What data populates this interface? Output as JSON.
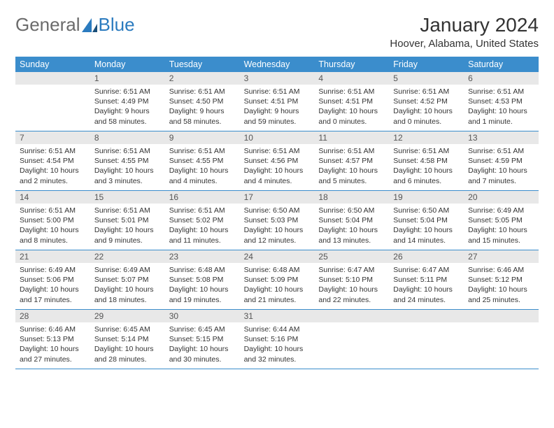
{
  "logo": {
    "general": "General",
    "blue": "Blue"
  },
  "title": "January 2024",
  "location": "Hoover, Alabama, United States",
  "colors": {
    "header_bg": "#3b8dcc",
    "header_text": "#ffffff",
    "daynum_bg": "#e8e8e8",
    "week_border": "#3b8dcc",
    "logo_gray": "#6b6b6b",
    "logo_blue": "#2b7bbf"
  },
  "day_names": [
    "Sunday",
    "Monday",
    "Tuesday",
    "Wednesday",
    "Thursday",
    "Friday",
    "Saturday"
  ],
  "weeks": [
    [
      null,
      {
        "n": "1",
        "sr": "Sunrise: 6:51 AM",
        "ss": "Sunset: 4:49 PM",
        "dl": "Daylight: 9 hours and 58 minutes."
      },
      {
        "n": "2",
        "sr": "Sunrise: 6:51 AM",
        "ss": "Sunset: 4:50 PM",
        "dl": "Daylight: 9 hours and 58 minutes."
      },
      {
        "n": "3",
        "sr": "Sunrise: 6:51 AM",
        "ss": "Sunset: 4:51 PM",
        "dl": "Daylight: 9 hours and 59 minutes."
      },
      {
        "n": "4",
        "sr": "Sunrise: 6:51 AM",
        "ss": "Sunset: 4:51 PM",
        "dl": "Daylight: 10 hours and 0 minutes."
      },
      {
        "n": "5",
        "sr": "Sunrise: 6:51 AM",
        "ss": "Sunset: 4:52 PM",
        "dl": "Daylight: 10 hours and 0 minutes."
      },
      {
        "n": "6",
        "sr": "Sunrise: 6:51 AM",
        "ss": "Sunset: 4:53 PM",
        "dl": "Daylight: 10 hours and 1 minute."
      }
    ],
    [
      {
        "n": "7",
        "sr": "Sunrise: 6:51 AM",
        "ss": "Sunset: 4:54 PM",
        "dl": "Daylight: 10 hours and 2 minutes."
      },
      {
        "n": "8",
        "sr": "Sunrise: 6:51 AM",
        "ss": "Sunset: 4:55 PM",
        "dl": "Daylight: 10 hours and 3 minutes."
      },
      {
        "n": "9",
        "sr": "Sunrise: 6:51 AM",
        "ss": "Sunset: 4:55 PM",
        "dl": "Daylight: 10 hours and 4 minutes."
      },
      {
        "n": "10",
        "sr": "Sunrise: 6:51 AM",
        "ss": "Sunset: 4:56 PM",
        "dl": "Daylight: 10 hours and 4 minutes."
      },
      {
        "n": "11",
        "sr": "Sunrise: 6:51 AM",
        "ss": "Sunset: 4:57 PM",
        "dl": "Daylight: 10 hours and 5 minutes."
      },
      {
        "n": "12",
        "sr": "Sunrise: 6:51 AM",
        "ss": "Sunset: 4:58 PM",
        "dl": "Daylight: 10 hours and 6 minutes."
      },
      {
        "n": "13",
        "sr": "Sunrise: 6:51 AM",
        "ss": "Sunset: 4:59 PM",
        "dl": "Daylight: 10 hours and 7 minutes."
      }
    ],
    [
      {
        "n": "14",
        "sr": "Sunrise: 6:51 AM",
        "ss": "Sunset: 5:00 PM",
        "dl": "Daylight: 10 hours and 8 minutes."
      },
      {
        "n": "15",
        "sr": "Sunrise: 6:51 AM",
        "ss": "Sunset: 5:01 PM",
        "dl": "Daylight: 10 hours and 9 minutes."
      },
      {
        "n": "16",
        "sr": "Sunrise: 6:51 AM",
        "ss": "Sunset: 5:02 PM",
        "dl": "Daylight: 10 hours and 11 minutes."
      },
      {
        "n": "17",
        "sr": "Sunrise: 6:50 AM",
        "ss": "Sunset: 5:03 PM",
        "dl": "Daylight: 10 hours and 12 minutes."
      },
      {
        "n": "18",
        "sr": "Sunrise: 6:50 AM",
        "ss": "Sunset: 5:04 PM",
        "dl": "Daylight: 10 hours and 13 minutes."
      },
      {
        "n": "19",
        "sr": "Sunrise: 6:50 AM",
        "ss": "Sunset: 5:04 PM",
        "dl": "Daylight: 10 hours and 14 minutes."
      },
      {
        "n": "20",
        "sr": "Sunrise: 6:49 AM",
        "ss": "Sunset: 5:05 PM",
        "dl": "Daylight: 10 hours and 15 minutes."
      }
    ],
    [
      {
        "n": "21",
        "sr": "Sunrise: 6:49 AM",
        "ss": "Sunset: 5:06 PM",
        "dl": "Daylight: 10 hours and 17 minutes."
      },
      {
        "n": "22",
        "sr": "Sunrise: 6:49 AM",
        "ss": "Sunset: 5:07 PM",
        "dl": "Daylight: 10 hours and 18 minutes."
      },
      {
        "n": "23",
        "sr": "Sunrise: 6:48 AM",
        "ss": "Sunset: 5:08 PM",
        "dl": "Daylight: 10 hours and 19 minutes."
      },
      {
        "n": "24",
        "sr": "Sunrise: 6:48 AM",
        "ss": "Sunset: 5:09 PM",
        "dl": "Daylight: 10 hours and 21 minutes."
      },
      {
        "n": "25",
        "sr": "Sunrise: 6:47 AM",
        "ss": "Sunset: 5:10 PM",
        "dl": "Daylight: 10 hours and 22 minutes."
      },
      {
        "n": "26",
        "sr": "Sunrise: 6:47 AM",
        "ss": "Sunset: 5:11 PM",
        "dl": "Daylight: 10 hours and 24 minutes."
      },
      {
        "n": "27",
        "sr": "Sunrise: 6:46 AM",
        "ss": "Sunset: 5:12 PM",
        "dl": "Daylight: 10 hours and 25 minutes."
      }
    ],
    [
      {
        "n": "28",
        "sr": "Sunrise: 6:46 AM",
        "ss": "Sunset: 5:13 PM",
        "dl": "Daylight: 10 hours and 27 minutes."
      },
      {
        "n": "29",
        "sr": "Sunrise: 6:45 AM",
        "ss": "Sunset: 5:14 PM",
        "dl": "Daylight: 10 hours and 28 minutes."
      },
      {
        "n": "30",
        "sr": "Sunrise: 6:45 AM",
        "ss": "Sunset: 5:15 PM",
        "dl": "Daylight: 10 hours and 30 minutes."
      },
      {
        "n": "31",
        "sr": "Sunrise: 6:44 AM",
        "ss": "Sunset: 5:16 PM",
        "dl": "Daylight: 10 hours and 32 minutes."
      },
      null,
      null,
      null
    ]
  ]
}
